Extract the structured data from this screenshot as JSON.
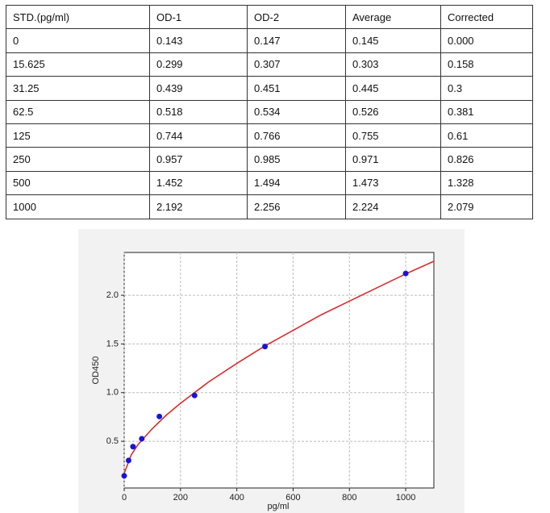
{
  "table": {
    "header": [
      "STD.(pg/ml)",
      "OD-1",
      "OD-2",
      "Average",
      "Corrected"
    ],
    "rows": [
      [
        "0",
        "0.143",
        "0.147",
        "0.145",
        "0.000"
      ],
      [
        "15.625",
        "0.299",
        "0.307",
        "0.303",
        "0.158"
      ],
      [
        "31.25",
        "0.439",
        "0.451",
        "0.445",
        "0.3"
      ],
      [
        "62.5",
        "0.518",
        "0.534",
        "0.526",
        "0.381"
      ],
      [
        "125",
        "0.744",
        "0.766",
        "0.755",
        "0.61"
      ],
      [
        "250",
        "0.957",
        "0.985",
        "0.971",
        "0.826"
      ],
      [
        "500",
        "1.452",
        "1.494",
        "1.473",
        "1.328"
      ],
      [
        "1000",
        "2.192",
        "2.256",
        "2.224",
        "2.079"
      ]
    ]
  },
  "chart_data": {
    "type": "scatter",
    "x_label": "pg/ml",
    "y_label": "OD450",
    "xlim": [
      0,
      1100
    ],
    "ylim": [
      0.02,
      2.44
    ],
    "xticks": [
      0,
      200,
      400,
      600,
      800,
      1000
    ],
    "yticks": [
      0.5,
      {
        "value": 1,
        "label": "1.0"
      },
      1.5,
      {
        "value": 2,
        "label": "2.0"
      }
    ],
    "grid": true,
    "series": [
      {
        "mode": "markers",
        "color": "#1515d6",
        "x": [
          0,
          15.625,
          31.25,
          62.5,
          125,
          250,
          500,
          1000
        ],
        "values": [
          0.145,
          0.303,
          0.445,
          0.526,
          0.755,
          0.971,
          1.473,
          2.224
        ]
      },
      {
        "mode": "lines",
        "color": "#dd2a2a",
        "x": [
          0,
          25,
          50,
          100,
          150,
          200,
          300,
          400,
          500,
          600,
          700,
          800,
          900,
          1000,
          1100
        ],
        "values": [
          0.17,
          0.36,
          0.47,
          0.63,
          0.77,
          0.89,
          1.11,
          1.3,
          1.48,
          1.64,
          1.8,
          1.94,
          2.08,
          2.22,
          2.35
        ]
      }
    ]
  }
}
